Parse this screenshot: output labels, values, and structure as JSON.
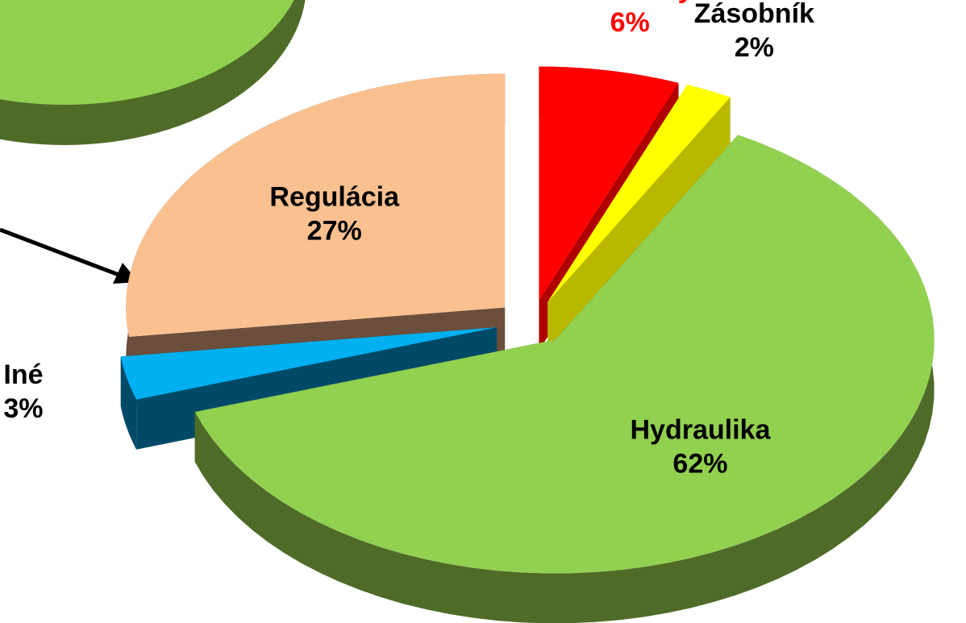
{
  "chart_data": {
    "type": "pie",
    "categories": [
      "Kolektory",
      "Zásobník",
      "Hydraulika",
      "Iné",
      "Regulácia"
    ],
    "values": [
      6,
      2,
      62,
      3,
      27
    ],
    "value_labels": [
      "6%",
      "2%",
      "62%",
      "3%",
      "27%"
    ],
    "colors": [
      "#ff0000",
      "#ffff00",
      "#92d050",
      "#00b0f0",
      "#fac090"
    ],
    "side_colors": [
      "#b00000",
      "#b8b800",
      "#4f6b28",
      "#004a68",
      "#6b4e3c"
    ],
    "label_colors": [
      "#ff0000",
      "#000000",
      "#000000",
      "#000000",
      "#000000"
    ]
  }
}
